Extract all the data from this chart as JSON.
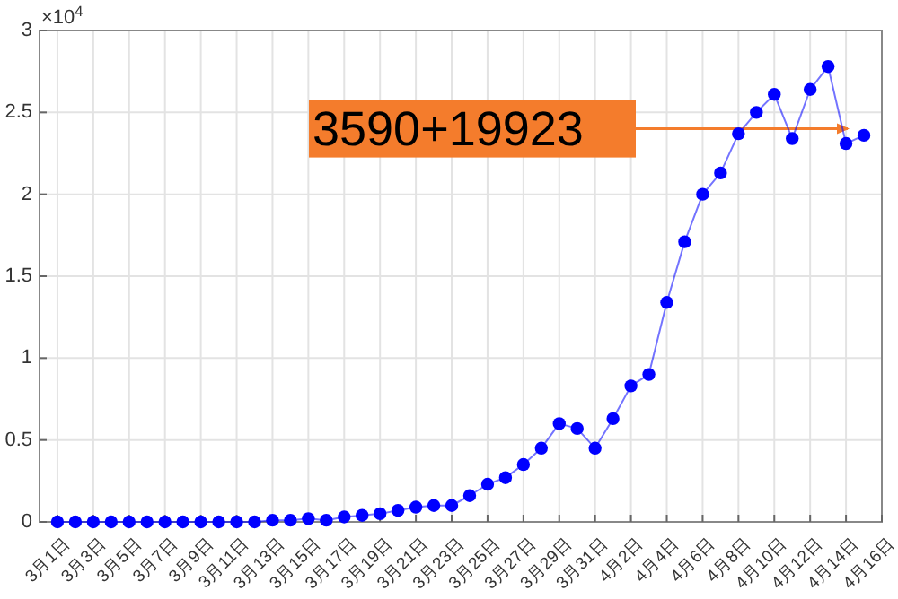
{
  "chart_data": {
    "type": "line",
    "marker": "circle",
    "grid": true,
    "x": [
      "--03-01",
      "--03-02",
      "--03-03",
      "--03-04",
      "--03-05",
      "--03-06",
      "--03-07",
      "--03-08",
      "--03-09",
      "--03-10",
      "--03-11",
      "--03-12",
      "--03-13",
      "--03-14",
      "--03-15",
      "--03-16",
      "--03-17",
      "--03-18",
      "--03-19",
      "--03-20",
      "--03-21",
      "--03-22",
      "--03-23",
      "--03-24",
      "--03-25",
      "--03-26",
      "--03-27",
      "--03-28",
      "--03-29",
      "--03-30",
      "--03-31",
      "--04-01",
      "--04-02",
      "--04-03",
      "--04-04",
      "--04-05",
      "--04-06",
      "--04-07",
      "--04-08",
      "--04-09",
      "--04-10",
      "--04-11",
      "--04-12",
      "--04-13",
      "--04-14",
      "--04-15"
    ],
    "series": [
      {
        "color": "#0000ff",
        "values": [
          0,
          0,
          0,
          0,
          0,
          0,
          0,
          0,
          0,
          0,
          0,
          0,
          0.01,
          0.01,
          0.02,
          0.01,
          0.03,
          0.04,
          0.05,
          0.07,
          0.09,
          0.1,
          0.1,
          0.16,
          0.23,
          0.27,
          0.35,
          0.45,
          0.6,
          0.57,
          0.45,
          0.63,
          0.83,
          0.9,
          1.34,
          1.71,
          2,
          2.13,
          2.37,
          2.5,
          2.61,
          2.34,
          2.64,
          2.78,
          2.31,
          2.36
        ]
      }
    ],
    "xlim": [
      "--02-29",
      "--04-16"
    ],
    "xticks": [
      {
        "value": "--03-01",
        "label": "3月1日"
      },
      {
        "value": "--03-03",
        "label": "3月3日"
      },
      {
        "value": "--03-05",
        "label": "3月5日"
      },
      {
        "value": "--03-07",
        "label": "3月7日"
      },
      {
        "value": "--03-09",
        "label": "3月9日"
      },
      {
        "value": "--03-11",
        "label": "3月11日"
      },
      {
        "value": "--03-13",
        "label": "3月13日"
      },
      {
        "value": "--03-15",
        "label": "3月15日"
      },
      {
        "value": "--03-17",
        "label": "3月17日"
      },
      {
        "value": "--03-19",
        "label": "3月19日"
      },
      {
        "value": "--03-21",
        "label": "3月21日"
      },
      {
        "value": "--03-23",
        "label": "3月23日"
      },
      {
        "value": "--03-25",
        "label": "3月25日"
      },
      {
        "value": "--03-27",
        "label": "3月27日"
      },
      {
        "value": "--03-29",
        "label": "3月29日"
      },
      {
        "value": "--03-31",
        "label": "3月31日"
      },
      {
        "value": "--04-02",
        "label": "4月2日"
      },
      {
        "value": "--04-04",
        "label": "4月4日"
      },
      {
        "value": "--04-06",
        "label": "4月6日"
      },
      {
        "value": "--04-08",
        "label": "4月8日"
      },
      {
        "value": "--04-10",
        "label": "4月10日"
      },
      {
        "value": "--04-12",
        "label": "4月12日"
      },
      {
        "value": "--04-14",
        "label": "4月14日"
      },
      {
        "value": "--04-16",
        "label": "4月16日"
      }
    ],
    "ylim": [
      0,
      3
    ],
    "yticks": [
      0,
      0.5,
      1,
      1.5,
      2,
      2.5,
      3
    ],
    "annotations": [
      "×10$^{4}$",
      "3590+19923"
    ],
    "ref_lines": [
      {
        "axis": "y",
        "value": 2.4,
        "color": "#f47c2c"
      }
    ]
  }
}
